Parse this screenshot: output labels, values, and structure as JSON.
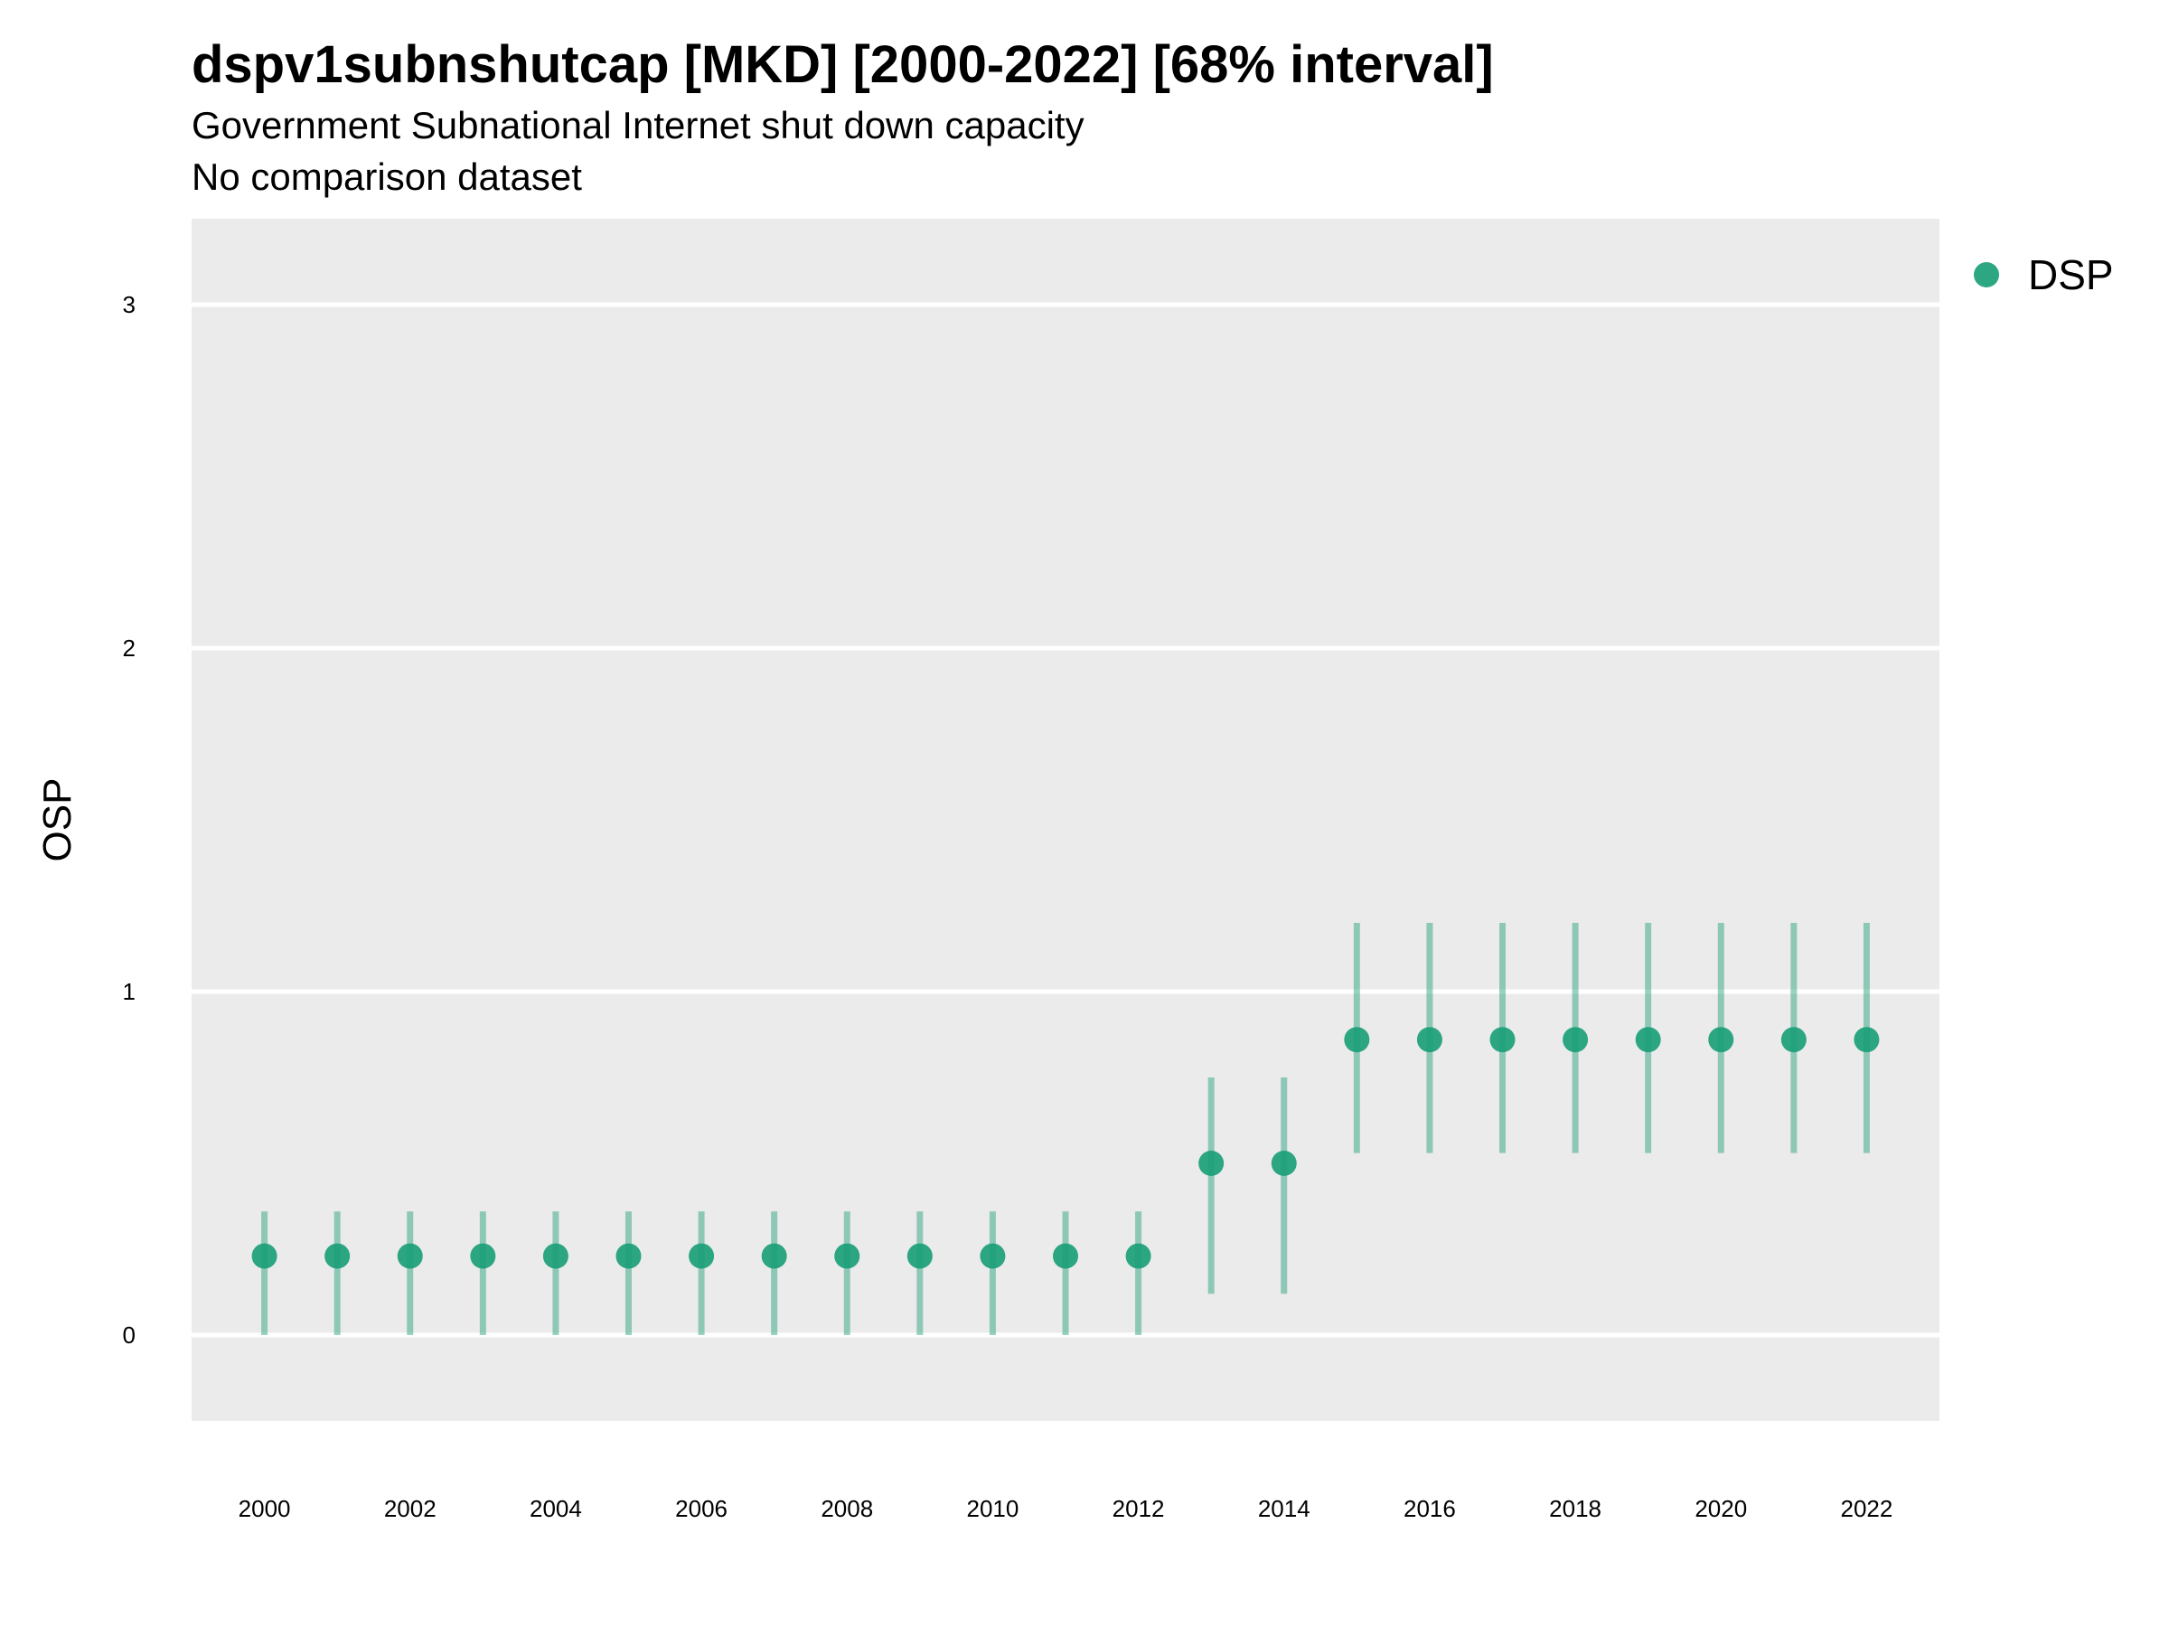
{
  "chart_data": {
    "type": "scatter",
    "title": "dspv1subnshutcap [MKD] [2000-2022] [68% interval]",
    "subtitle": "Government Subnational Internet shut down capacity",
    "caption": "No comparison dataset",
    "xlabel": "",
    "ylabel": "OSP",
    "xlim": [
      1999,
      2023
    ],
    "ylim": [
      -0.25,
      3.25
    ],
    "x_ticks": [
      2000,
      2002,
      2004,
      2006,
      2008,
      2010,
      2012,
      2014,
      2016,
      2018,
      2020,
      2022
    ],
    "y_ticks": [
      0,
      1,
      2,
      3
    ],
    "grid": true,
    "legend_position": "top-right",
    "series": [
      {
        "name": "DSP",
        "color": "#1b9e77",
        "x": [
          2000,
          2001,
          2002,
          2003,
          2004,
          2005,
          2006,
          2007,
          2008,
          2009,
          2010,
          2011,
          2012,
          2013,
          2014,
          2015,
          2016,
          2017,
          2018,
          2019,
          2020,
          2021,
          2022
        ],
        "y": [
          0.23,
          0.23,
          0.23,
          0.23,
          0.23,
          0.23,
          0.23,
          0.23,
          0.23,
          0.23,
          0.23,
          0.23,
          0.23,
          0.5,
          0.5,
          0.86,
          0.86,
          0.86,
          0.86,
          0.86,
          0.86,
          0.86,
          0.86
        ],
        "lower": [
          0.0,
          0.0,
          0.0,
          0.0,
          0.0,
          0.0,
          0.0,
          0.0,
          0.0,
          0.0,
          0.0,
          0.0,
          0.0,
          0.12,
          0.12,
          0.53,
          0.53,
          0.53,
          0.53,
          0.53,
          0.53,
          0.53,
          0.53
        ],
        "upper": [
          0.36,
          0.36,
          0.36,
          0.36,
          0.36,
          0.36,
          0.36,
          0.36,
          0.36,
          0.36,
          0.36,
          0.36,
          0.36,
          0.75,
          0.75,
          1.2,
          1.2,
          1.2,
          1.2,
          1.2,
          1.2,
          1.2,
          1.2
        ]
      }
    ]
  }
}
